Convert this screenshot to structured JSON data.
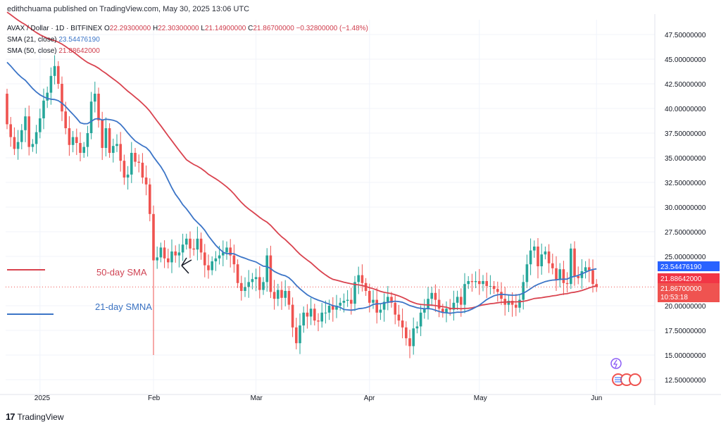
{
  "header": {
    "publisher": "edithchuama published on TradingView.com, May 30, 2025 13:06 UTC"
  },
  "legend": {
    "title": "AVAX / Dollar · 1D · BITFINEX",
    "ohlc": [
      {
        "label": "O",
        "value": "22.29300000"
      },
      {
        "label": "H",
        "value": "22.30300000"
      },
      {
        "label": "L",
        "value": "21.14900000"
      },
      {
        "label": "C",
        "value": "21.86700000"
      },
      {
        "label": "",
        "value": "−0.32800000 (−1.48%)"
      }
    ],
    "sma21_label": "SMA (21, close)",
    "sma21_value": "23.54476190",
    "sma50_label": "SMA (50, close)",
    "sma50_value": "21.88642000"
  },
  "annotations": {
    "sma50": "50-day SMA",
    "sma21": "21-day SMNA"
  },
  "badges": {
    "sma21": "23.54476190",
    "sma50": "21.88642000",
    "last_price": "21.86700000",
    "countdown": "10:53:18"
  },
  "footer": {
    "brand": "TradingView",
    "logo_glyph": "17"
  },
  "colors": {
    "up": "#26a69a",
    "down": "#ef5350",
    "sma21": "#3c75c7",
    "sma50": "#d9434f",
    "price_badge": "#ef5350",
    "sma21_badge": "#2962ff",
    "sma50_badge": "#f23645"
  },
  "chart_data": {
    "type": "candlestick",
    "symbol": "AVAX / Dollar",
    "timeframe": "1D",
    "exchange": "BITFINEX",
    "ylim": [
      11,
      49
    ],
    "y_ticks": [
      "47.50000000",
      "45.00000000",
      "42.50000000",
      "40.00000000",
      "37.50000000",
      "35.00000000",
      "32.50000000",
      "30.00000000",
      "27.50000000",
      "25.00000000",
      "20.00000000",
      "17.50000000",
      "15.00000000",
      "12.50000000"
    ],
    "y_tick_values": [
      47.5,
      45,
      42.5,
      40,
      37.5,
      35,
      32.5,
      30,
      27.5,
      25,
      20,
      17.5,
      15,
      12.5
    ],
    "x_ticks": [
      {
        "label": "2025",
        "index": 9
      },
      {
        "label": "Feb",
        "index": 40
      },
      {
        "label": "Mar",
        "index": 68
      },
      {
        "label": "Apr",
        "index": 99
      },
      {
        "label": "May",
        "index": 129
      },
      {
        "label": "Jun",
        "index": 161
      }
    ],
    "closes": [
      38.4,
      37.1,
      35.9,
      36.6,
      37.8,
      39.2,
      36.1,
      36.4,
      37.6,
      39.0,
      40.8,
      41.6,
      43.3,
      44.3,
      42.5,
      39.7,
      38.0,
      36.3,
      37.1,
      36.5,
      35.5,
      36.1,
      37.5,
      40.7,
      41.5,
      38.8,
      36.0,
      38.0,
      35.5,
      36.2,
      36.4,
      34.7,
      33.0,
      33.3,
      35.5,
      34.6,
      34.5,
      33.0,
      32.3,
      29.3,
      24.6,
      24.9,
      25.9,
      24.8,
      24.4,
      25.5,
      25.1,
      25.4,
      26.2,
      26.8,
      25.8,
      25.7,
      26.8,
      25.4,
      24.1,
      23.6,
      24.5,
      24.8,
      25.1,
      25.4,
      25.9,
      25.1,
      24.2,
      22.3,
      21.5,
      21.9,
      22.4,
      22.7,
      22.9,
      21.6,
      22.4,
      25.1,
      21.4,
      20.7,
      21.6,
      20.8,
      21.5,
      20.1,
      17.8,
      16.2,
      18.0,
      19.3,
      18.9,
      19.7,
      18.5,
      18.4,
      19.3,
      19.3,
      20.0,
      19.6,
      20.0,
      20.3,
      20.5,
      20.6,
      20.2,
      22.4,
      23.1,
      22.3,
      21.5,
      20.3,
      20.6,
      19.3,
      19.6,
      20.4,
      20.9,
      20.3,
      19.1,
      18.5,
      17.8,
      16.7,
      15.9,
      17.7,
      17.9,
      19.3,
      19.7,
      20.7,
      21.3,
      20.6,
      19.7,
      19.3,
      19.7,
      19.6,
      20.3,
      20.9,
      20.1,
      22.2,
      22.5,
      22.4,
      22.5,
      22.2,
      22.5,
      22.0,
      22.0,
      21.7,
      21.4,
      20.7,
      20.1,
      20.5,
      20.1,
      19.8,
      20.6,
      22.4,
      24.2,
      25.6,
      26.0,
      24.0,
      25.2,
      25.5,
      24.3,
      23.8,
      22.6,
      23.7,
      22.3,
      22.2,
      25.8,
      23.0,
      22.8,
      23.5,
      23.9,
      23.6,
      22.2,
      21.9
    ],
    "series": [
      {
        "name": "SMA (21, close)",
        "last_value": 23.5447619
      },
      {
        "name": "SMA (50, close)",
        "last_value": 21.88642
      }
    ]
  }
}
